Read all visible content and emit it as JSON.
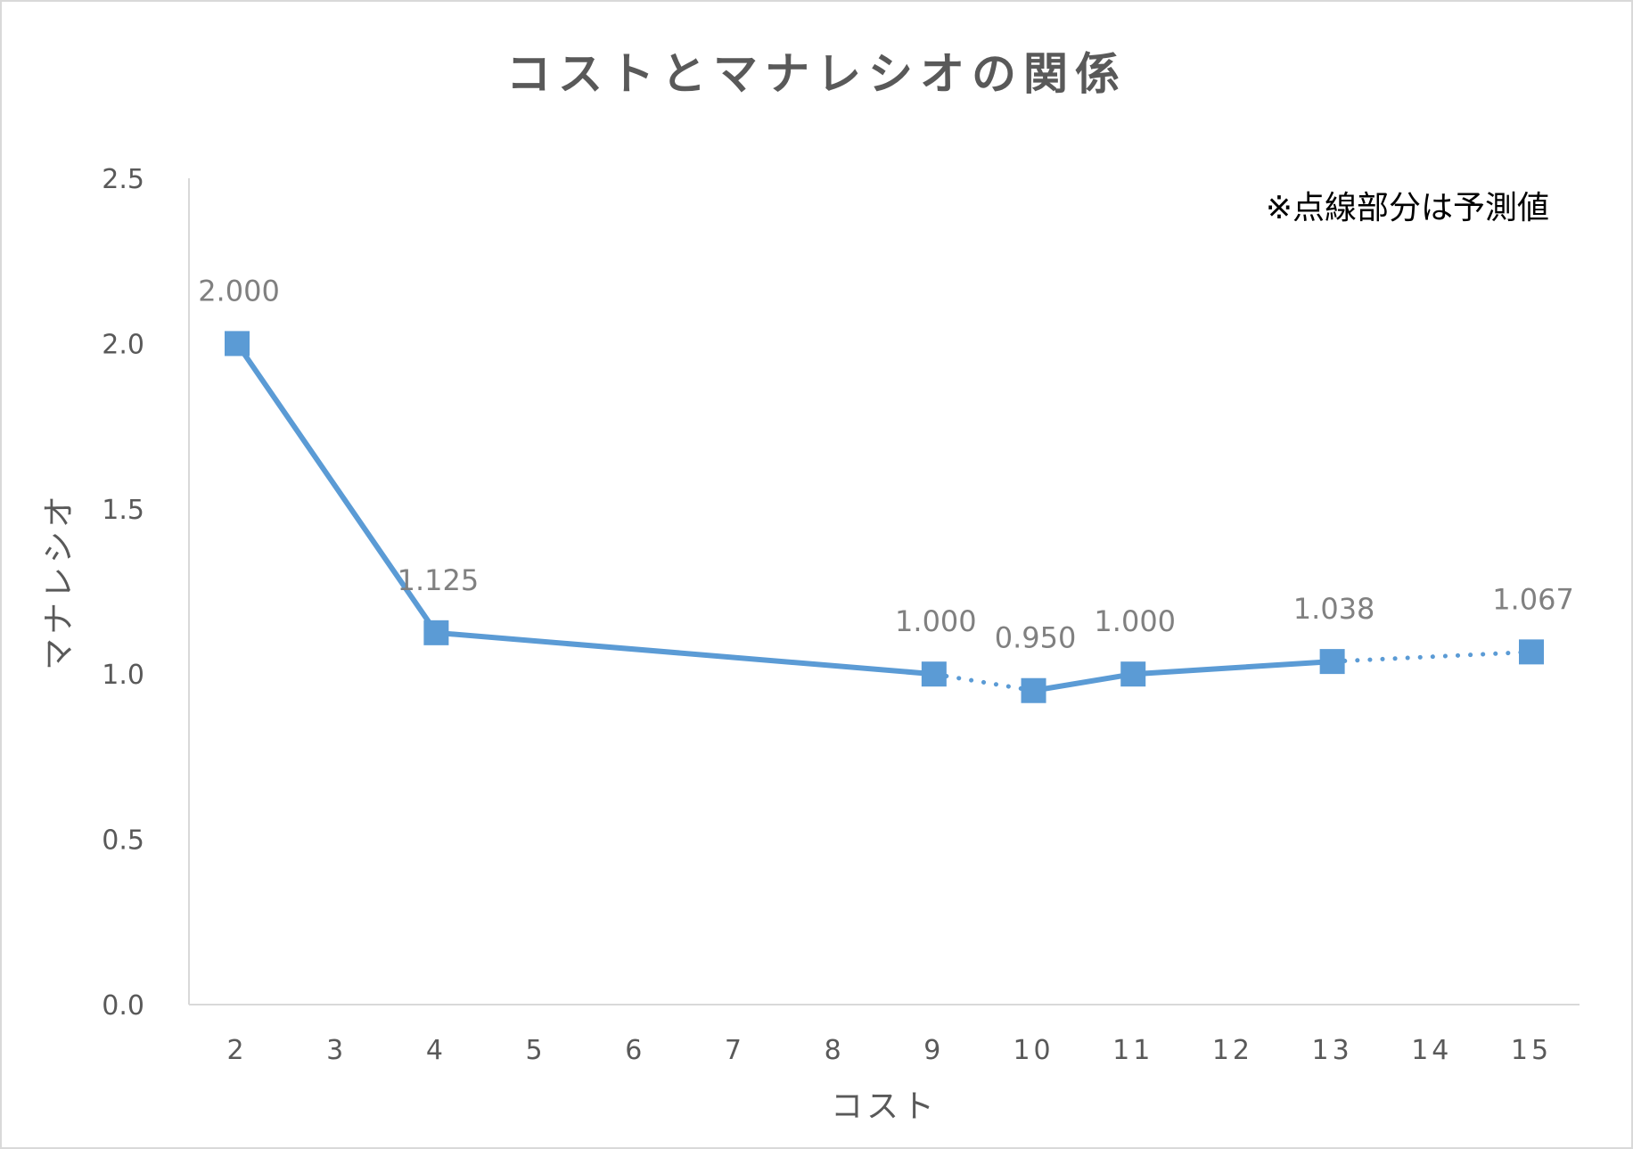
{
  "chart_data": {
    "type": "line",
    "title": "コストとマナレシオの関係",
    "xlabel": "コスト",
    "ylabel": "マナレシオ",
    "annotation": "※点線部分は予測値",
    "x_categories": [
      "2",
      "3",
      "4",
      "5",
      "6",
      "7",
      "8",
      "9",
      "10",
      "11",
      "12",
      "13",
      "14",
      "15"
    ],
    "y_ticks": [
      "0.0",
      "0.5",
      "1.0",
      "1.5",
      "2.0",
      "2.5"
    ],
    "ylim": [
      0,
      2.5
    ],
    "grid": false,
    "legend": "none",
    "series": [
      {
        "color": "#5b9bd5",
        "marker": "square",
        "points": [
          {
            "x": 2,
            "y": 2.0,
            "label": "2.000",
            "predicted": false
          },
          {
            "x": 4,
            "y": 1.125,
            "label": "1.125",
            "predicted": false
          },
          {
            "x": 9,
            "y": 1.0,
            "label": "1.000",
            "predicted": false
          },
          {
            "x": 10,
            "y": 0.95,
            "label": "0.950",
            "predicted": true
          },
          {
            "x": 11,
            "y": 1.0,
            "label": "1.000",
            "predicted": false
          },
          {
            "x": 13,
            "y": 1.038,
            "label": "1.038",
            "predicted": false
          },
          {
            "x": 15,
            "y": 1.067,
            "label": "1.067",
            "predicted": true
          }
        ]
      }
    ]
  }
}
